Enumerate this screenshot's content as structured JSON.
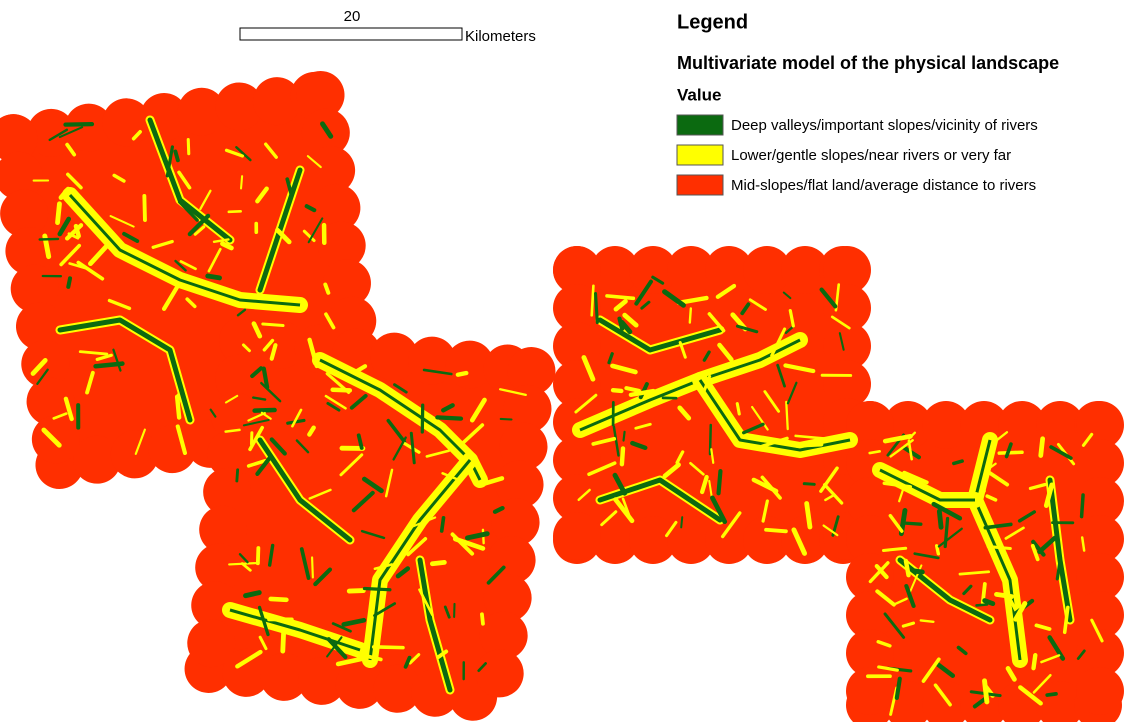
{
  "scale_bar": {
    "distance": "20",
    "unit": "Kilometers"
  },
  "legend": {
    "title": "Legend",
    "layer": "Multivariate model of the physical landscape",
    "field": "Value",
    "items": [
      {
        "label": "Deep valleys/important slopes/vicinity of rivers",
        "color": "#0b6a10"
      },
      {
        "label": "Lower/gentle slopes/near rivers or very far",
        "color": "#ffff00"
      },
      {
        "label": "Mid-slopes/flat land/average distance to rivers",
        "color": "#ff2f00"
      }
    ]
  }
}
